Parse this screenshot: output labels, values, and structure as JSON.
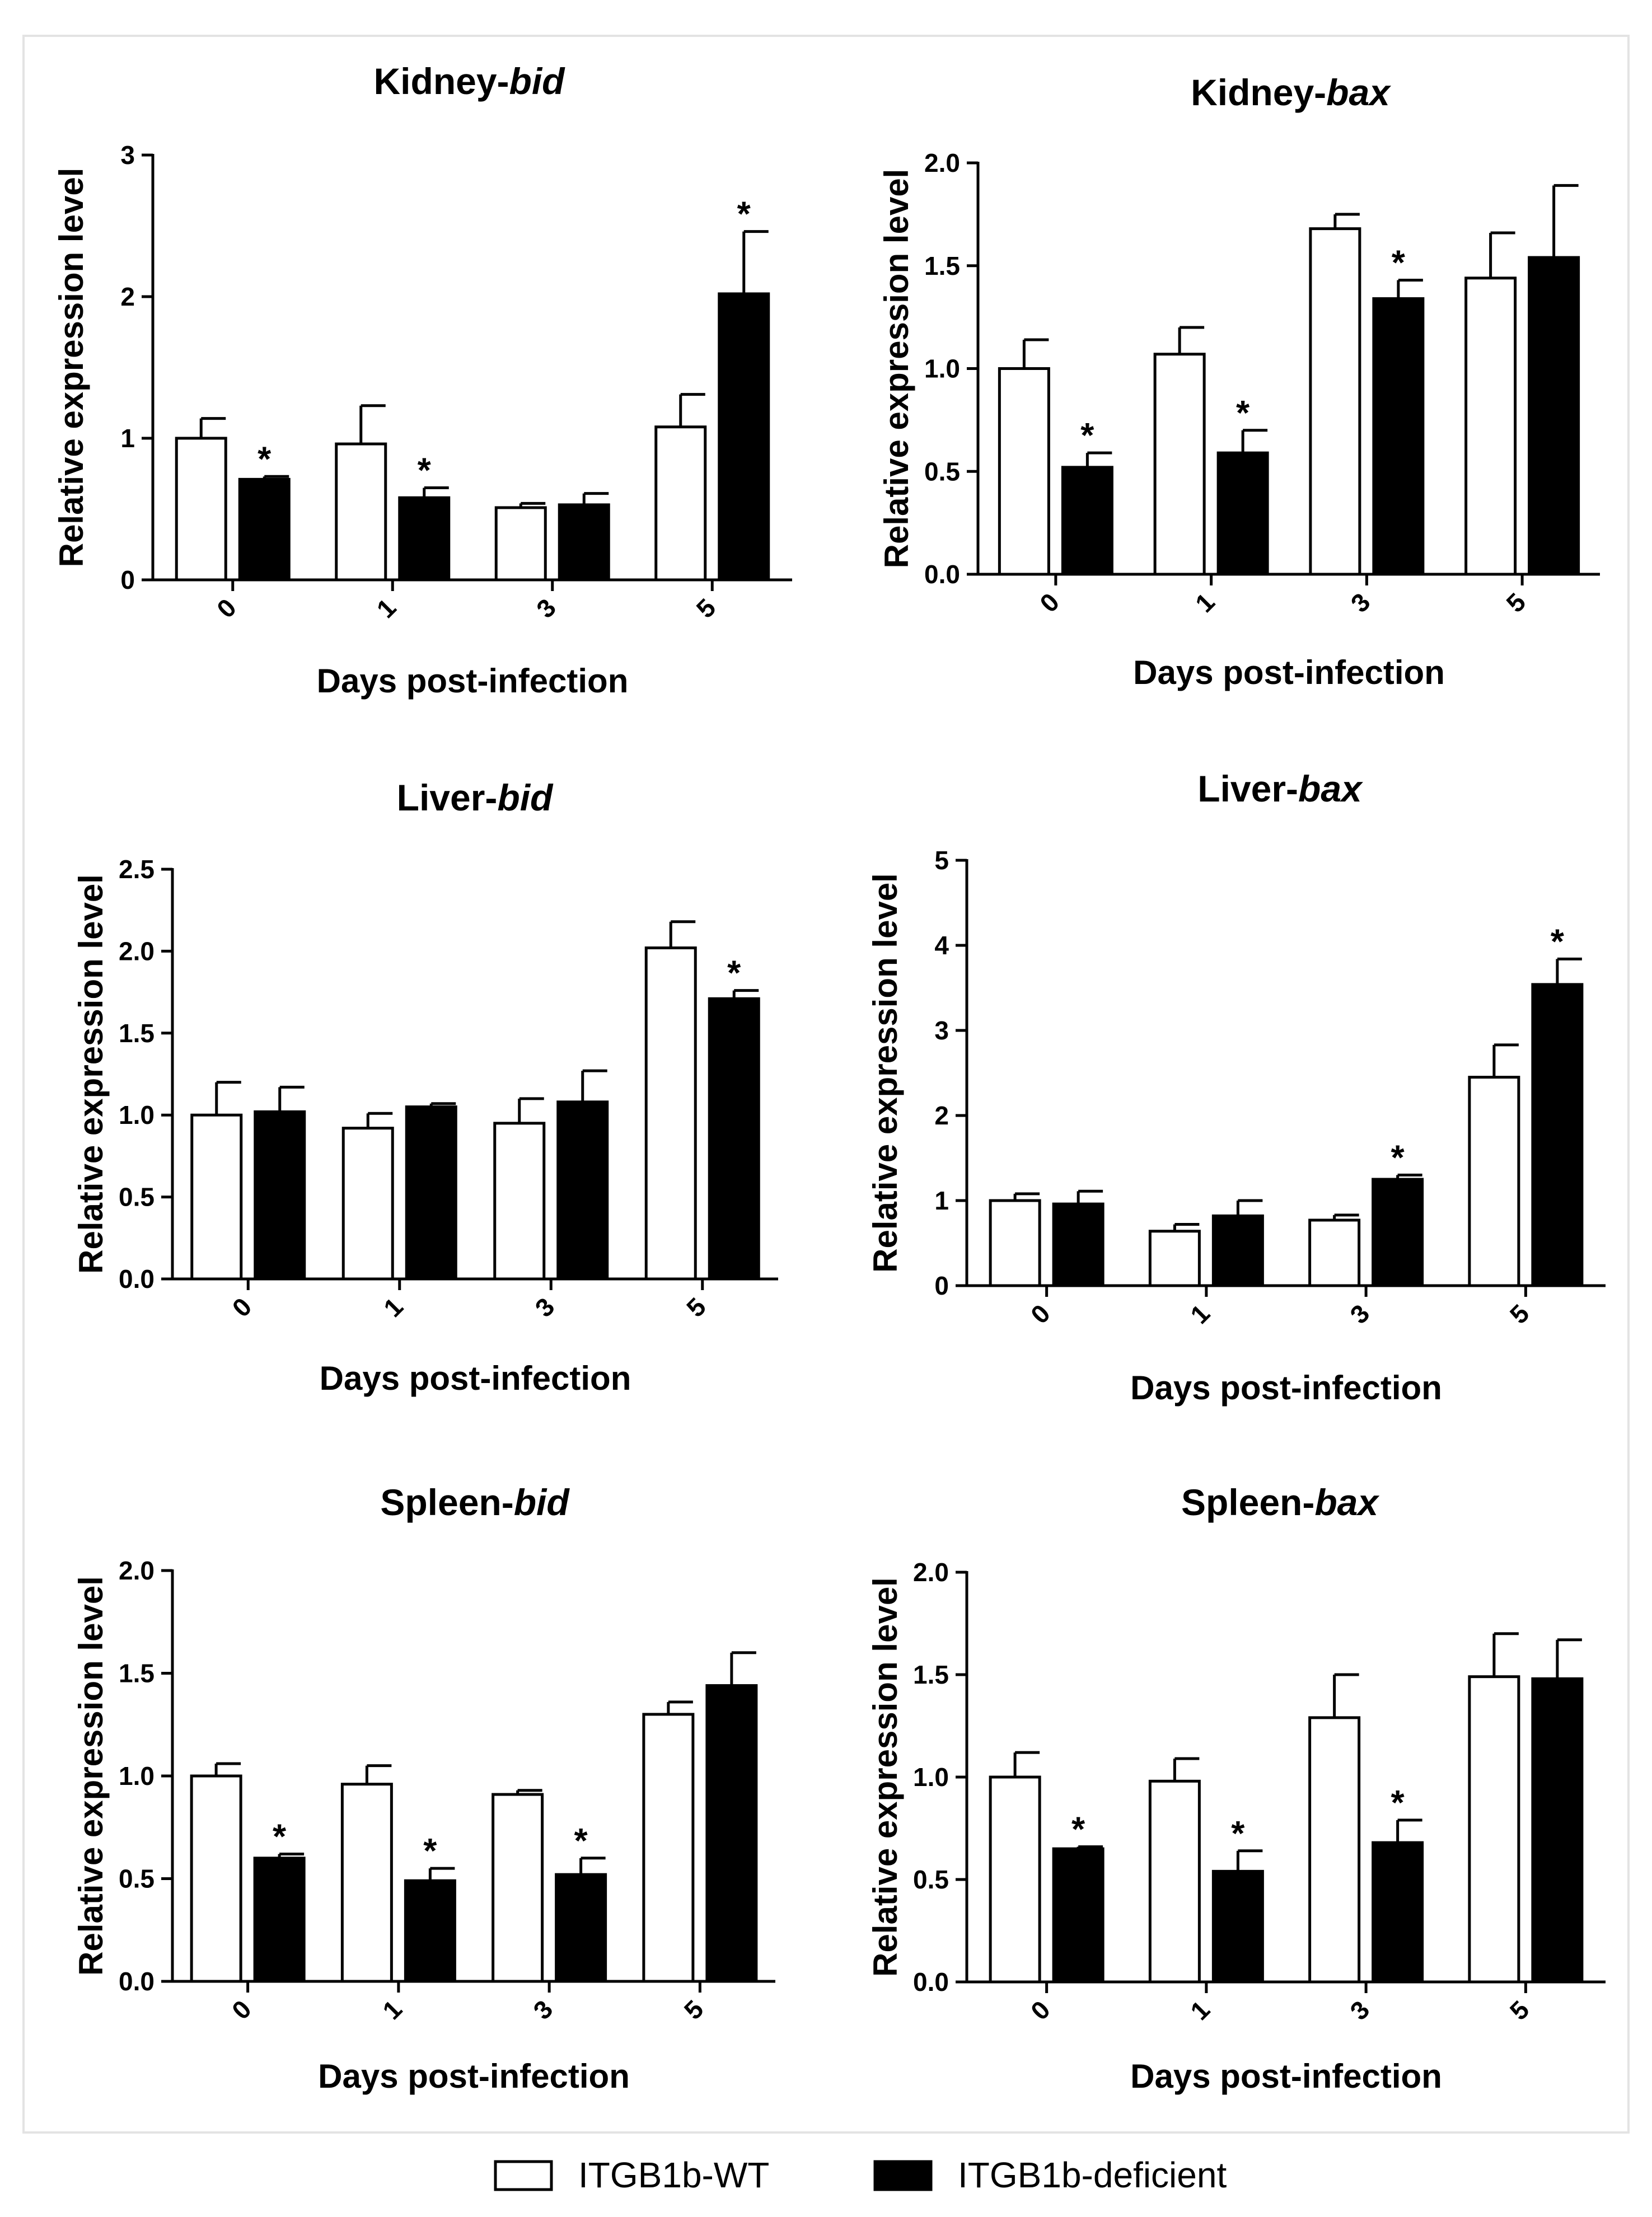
{
  "legend": {
    "items": [
      {
        "label": "ITGB1b-WT",
        "color": "#ffffff"
      },
      {
        "label": "ITGB1b-deficient",
        "color": "#000000"
      }
    ]
  },
  "chart_data": [
    {
      "type": "bar",
      "title_prefix": "Kidney-",
      "title_gene": "bid",
      "xlabel": "Days post-infection",
      "ylabel": "Relative expression level",
      "categories": [
        "0",
        "1",
        "3",
        "5"
      ],
      "ylim": [
        0,
        3
      ],
      "yticks": [
        "0",
        "1",
        "2",
        "3"
      ],
      "series": [
        {
          "name": "ITGB1b-WT",
          "color": "#ffffff",
          "values": [
            1.0,
            0.96,
            0.51,
            1.08
          ],
          "errors": [
            0.14,
            0.27,
            0.03,
            0.23
          ],
          "sig": [
            false,
            false,
            false,
            false
          ]
        },
        {
          "name": "ITGB1b-deficient",
          "color": "#000000",
          "values": [
            0.71,
            0.58,
            0.53,
            2.02
          ],
          "errors": [
            0.02,
            0.07,
            0.08,
            0.44
          ],
          "sig": [
            true,
            true,
            false,
            true
          ]
        }
      ]
    },
    {
      "type": "bar",
      "title_prefix": "Kidney-",
      "title_gene": "bax",
      "xlabel": "Days post-infection",
      "ylabel": "Relative expression level",
      "categories": [
        "0",
        "1",
        "3",
        "5"
      ],
      "ylim": [
        0,
        2
      ],
      "yticks": [
        "0.0",
        "0.5",
        "1.0",
        "1.5",
        "2.0"
      ],
      "series": [
        {
          "name": "ITGB1b-WT",
          "color": "#ffffff",
          "values": [
            1.0,
            1.07,
            1.68,
            1.44
          ],
          "errors": [
            0.14,
            0.13,
            0.07,
            0.22
          ],
          "sig": [
            false,
            false,
            false,
            false
          ]
        },
        {
          "name": "ITGB1b-deficient",
          "color": "#000000",
          "values": [
            0.52,
            0.59,
            1.34,
            1.54
          ],
          "errors": [
            0.07,
            0.11,
            0.09,
            0.35
          ],
          "sig": [
            true,
            true,
            true,
            false
          ]
        }
      ]
    },
    {
      "type": "bar",
      "title_prefix": "Liver-",
      "title_gene": "bid",
      "xlabel": "Days post-infection",
      "ylabel": "Relative expression level",
      "categories": [
        "0",
        "1",
        "3",
        "5"
      ],
      "ylim": [
        0,
        2.5
      ],
      "yticks": [
        "0.0",
        "0.5",
        "1.0",
        "1.5",
        "2.0",
        "2.5"
      ],
      "series": [
        {
          "name": "ITGB1b-WT",
          "color": "#ffffff",
          "values": [
            1.0,
            0.92,
            0.95,
            2.02
          ],
          "errors": [
            0.2,
            0.09,
            0.15,
            0.16
          ],
          "sig": [
            false,
            false,
            false,
            false
          ]
        },
        {
          "name": "ITGB1b-deficient",
          "color": "#000000",
          "values": [
            1.02,
            1.05,
            1.08,
            1.71
          ],
          "errors": [
            0.15,
            0.02,
            0.19,
            0.05
          ],
          "sig": [
            false,
            false,
            false,
            true
          ]
        }
      ]
    },
    {
      "type": "bar",
      "title_prefix": "Liver-",
      "title_gene": "bax",
      "xlabel": "Days post-infection",
      "ylabel": "Relative expression level",
      "categories": [
        "0",
        "1",
        "3",
        "5"
      ],
      "ylim": [
        0,
        5
      ],
      "yticks": [
        "0",
        "1",
        "2",
        "3",
        "4",
        "5"
      ],
      "series": [
        {
          "name": "ITGB1b-WT",
          "color": "#ffffff",
          "values": [
            1.0,
            0.64,
            0.77,
            2.45
          ],
          "errors": [
            0.08,
            0.08,
            0.06,
            0.38
          ],
          "sig": [
            false,
            false,
            false,
            false
          ]
        },
        {
          "name": "ITGB1b-deficient",
          "color": "#000000",
          "values": [
            0.96,
            0.82,
            1.25,
            3.54
          ],
          "errors": [
            0.15,
            0.18,
            0.05,
            0.3
          ],
          "sig": [
            false,
            false,
            true,
            true
          ]
        }
      ]
    },
    {
      "type": "bar",
      "title_prefix": "Spleen-",
      "title_gene": "bid",
      "xlabel": "Days post-infection",
      "ylabel": "Relative expression level",
      "categories": [
        "0",
        "1",
        "3",
        "5"
      ],
      "ylim": [
        0,
        2
      ],
      "yticks": [
        "0.0",
        "0.5",
        "1.0",
        "1.5",
        "2.0"
      ],
      "series": [
        {
          "name": "ITGB1b-WT",
          "color": "#ffffff",
          "values": [
            1.0,
            0.96,
            0.91,
            1.3
          ],
          "errors": [
            0.06,
            0.09,
            0.02,
            0.06
          ],
          "sig": [
            false,
            false,
            false,
            false
          ]
        },
        {
          "name": "ITGB1b-deficient",
          "color": "#000000",
          "values": [
            0.6,
            0.49,
            0.52,
            1.44
          ],
          "errors": [
            0.02,
            0.06,
            0.08,
            0.16
          ],
          "sig": [
            true,
            true,
            true,
            false
          ]
        }
      ]
    },
    {
      "type": "bar",
      "title_prefix": "Spleen-",
      "title_gene": "bax",
      "xlabel": "Days post-infection",
      "ylabel": "Relative expression level",
      "categories": [
        "0",
        "1",
        "3",
        "5"
      ],
      "ylim": [
        0,
        2
      ],
      "yticks": [
        "0.0",
        "0.5",
        "1.0",
        "1.5",
        "2.0"
      ],
      "series": [
        {
          "name": "ITGB1b-WT",
          "color": "#ffffff",
          "values": [
            1.0,
            0.98,
            1.29,
            1.49
          ],
          "errors": [
            0.12,
            0.11,
            0.21,
            0.21
          ],
          "sig": [
            false,
            false,
            false,
            false
          ]
        },
        {
          "name": "ITGB1b-deficient",
          "color": "#000000",
          "values": [
            0.65,
            0.54,
            0.68,
            1.48
          ],
          "errors": [
            0.01,
            0.1,
            0.11,
            0.19
          ],
          "sig": [
            true,
            true,
            true,
            false
          ]
        }
      ]
    }
  ]
}
